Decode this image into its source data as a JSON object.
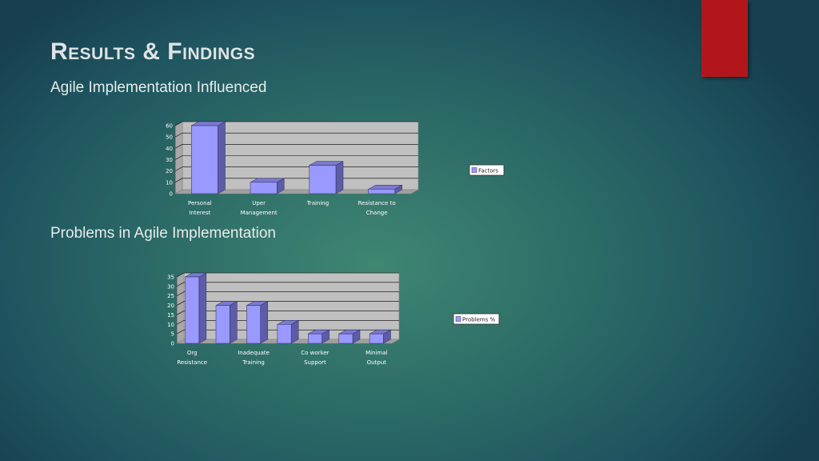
{
  "slide": {
    "title": "Results & Findings",
    "accent_color": "#b3161a"
  },
  "chart_data": [
    {
      "type": "bar",
      "subtitle": "Agile Implementation Influenced",
      "categories": [
        [
          "Personal",
          "Interest"
        ],
        [
          "Uper",
          "Management"
        ],
        [
          "Training"
        ],
        [
          "Resistance to",
          "Change"
        ]
      ],
      "series": [
        {
          "name": "Factors",
          "values": [
            60,
            10,
            25,
            4
          ]
        }
      ],
      "ylim": [
        0,
        60
      ],
      "yticks": [
        0,
        10,
        20,
        30,
        40,
        50,
        60
      ],
      "grid": true,
      "bar_color": "#9999ff",
      "legend_position": "right"
    },
    {
      "type": "bar",
      "subtitle": "Problems in Agile Implementation",
      "categories": [
        [
          "Org",
          "Resistance"
        ],
        [],
        [
          "Inadequate",
          "Training"
        ],
        [],
        [
          "Co worker",
          "Support"
        ],
        [],
        [
          "Minimal",
          "Output"
        ]
      ],
      "series": [
        {
          "name": "Problems %",
          "values": [
            35,
            20,
            20,
            10,
            5,
            5,
            5
          ]
        }
      ],
      "ylim": [
        0,
        35
      ],
      "yticks": [
        0,
        5,
        10,
        15,
        20,
        25,
        30,
        35
      ],
      "grid": true,
      "bar_color": "#9999ff",
      "legend_position": "right"
    }
  ]
}
